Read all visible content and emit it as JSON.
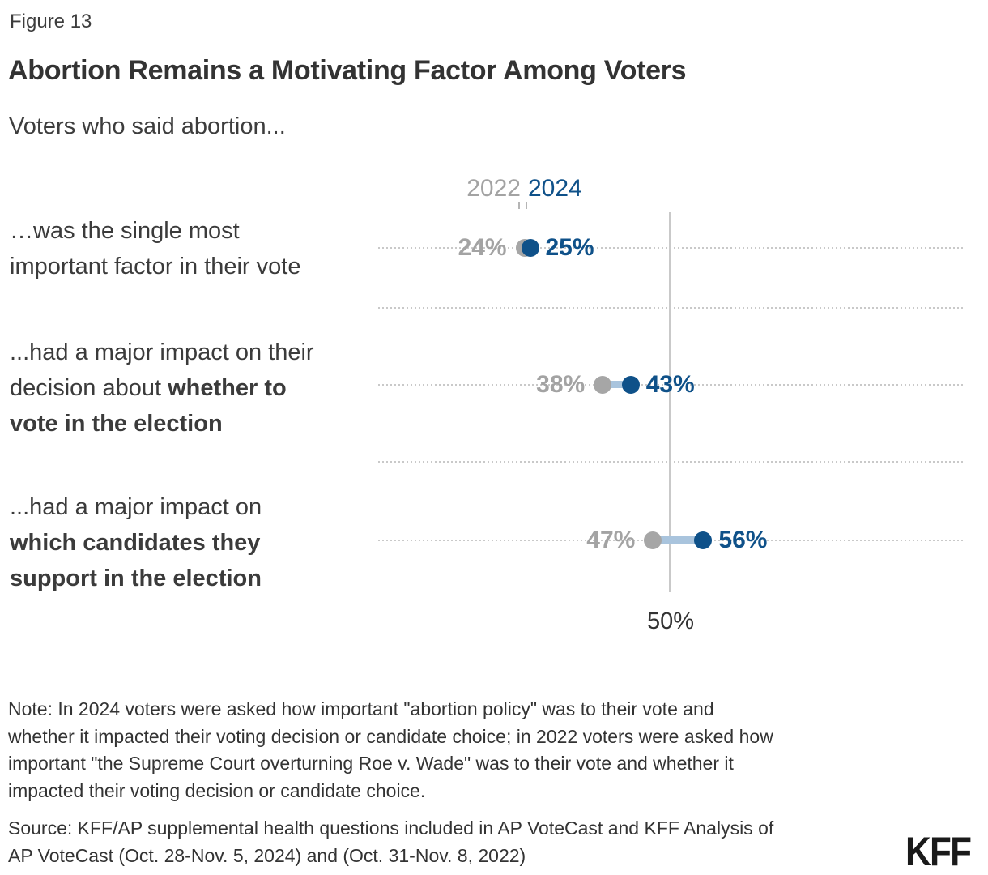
{
  "figure_label": "Figure 13",
  "title": "Abortion Remains a Motivating Factor Among Voters",
  "subtitle": "Voters who said abortion...",
  "legend": {
    "year_2022": "2022",
    "year_2024": "2024"
  },
  "axis": {
    "tick_label": "50%",
    "tick_value": 50
  },
  "colors": {
    "gray_2022": "#a3a3a3",
    "gray_dot": "#a6a6a6",
    "blue_2024": "#0f5189",
    "connector": "#a9c4dd",
    "gridline": "#c9c9c9",
    "text": "#3b3b3b",
    "logo": "#1a1a1a"
  },
  "chart_data": {
    "type": "dumbbell",
    "title": "Abortion Remains a Motivating Factor Among Voters",
    "subtitle": "Voters who said abortion...",
    "unit": "%",
    "categories": [
      "…was the single most important factor in their vote",
      "...had a major impact on their decision about whether to vote in the election",
      "...had a major impact on which candidates they support in the election"
    ],
    "series": [
      {
        "name": "2022",
        "color": "#a6a6a6",
        "values": [
          24,
          38,
          47
        ]
      },
      {
        "name": "2024",
        "color": "#0f5189",
        "values": [
          25,
          43,
          56
        ]
      }
    ],
    "x_axis": {
      "ticks": [
        50
      ],
      "tick_labels": [
        "50%"
      ]
    },
    "legend_position": "top",
    "grid": "dotted-horizontal",
    "rows": [
      {
        "label_lines": [
          [
            {
              "t": "…was the single most",
              "b": false
            }
          ],
          [
            {
              "t": "important factor in their vote",
              "b": false
            }
          ]
        ],
        "y2022": {
          "value": 24,
          "label": "24%"
        },
        "y2024": {
          "value": 25,
          "label": "25%"
        }
      },
      {
        "label_lines": [
          [
            {
              "t": "...had a major impact on their",
              "b": false
            }
          ],
          [
            {
              "t": "decision about ",
              "b": false
            },
            {
              "t": "whether to",
              "b": true
            }
          ],
          [
            {
              "t": "vote in the election",
              "b": true
            }
          ]
        ],
        "y2022": {
          "value": 38,
          "label": "38%"
        },
        "y2024": {
          "value": 43,
          "label": "43%"
        }
      },
      {
        "label_lines": [
          [
            {
              "t": "...had a major impact on",
              "b": false
            }
          ],
          [
            {
              "t": "which candidates they",
              "b": true
            }
          ],
          [
            {
              "t": "support in the election",
              "b": true
            }
          ]
        ],
        "y2022": {
          "value": 47,
          "label": "47%"
        },
        "y2024": {
          "value": 56,
          "label": "56%"
        }
      }
    ]
  },
  "note_lines": [
    "Note: In 2024 voters were asked how important \"abortion policy\" was to their vote and",
    "whether it impacted their voting decision or candidate choice; in 2022 voters were asked how",
    "important \"the Supreme Court overturning Roe v. Wade\" was to their vote and whether it",
    "impacted their voting decision or candidate choice."
  ],
  "source_lines": [
    "Source: KFF/AP supplemental health questions included in AP VoteCast and KFF Analysis of",
    "AP VoteCast (Oct. 28-Nov. 5, 2024) and (Oct. 31-Nov. 8, 2022)"
  ],
  "logo_text": "KFF"
}
